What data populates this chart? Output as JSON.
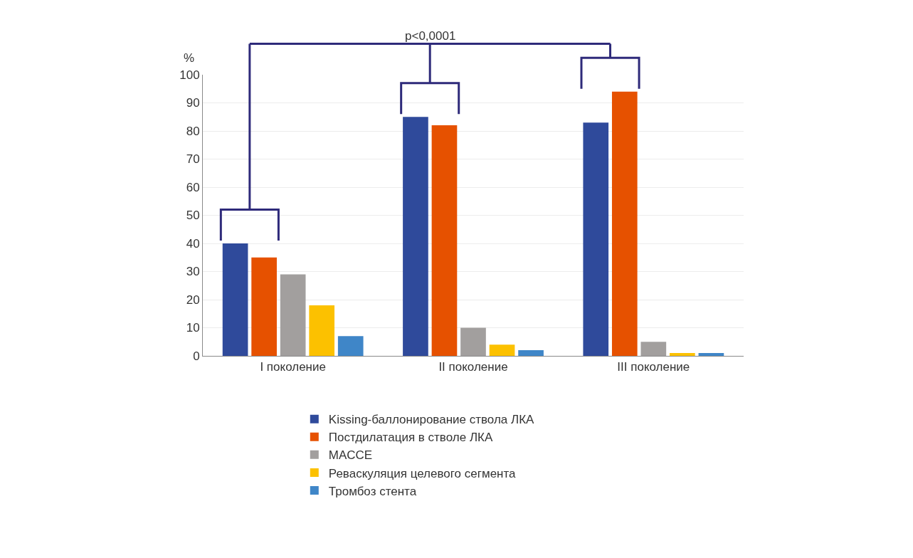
{
  "chart_data": {
    "type": "bar",
    "ylabel": "%",
    "annotations": [
      "p<0,0001"
    ],
    "categories": [
      "I поколение",
      "II поколение",
      "III поколение"
    ],
    "series": [
      {
        "name": "Kissing-баллонирование ствола ЛКА",
        "color": "#2f4a9b",
        "values": [
          40,
          85,
          83
        ]
      },
      {
        "name": "Постдилатация в стволе ЛКА",
        "color": "#e65100",
        "values": [
          35,
          82,
          94
        ]
      },
      {
        "name": "MACCE",
        "color": "#a29f9e",
        "values": [
          29,
          10,
          5
        ]
      },
      {
        "name": "Реваскуляция целевого сегмента",
        "color": "#fcc100",
        "values": [
          18,
          4,
          1
        ]
      },
      {
        "name": "Тромбоз стента",
        "color": "#3f86c8",
        "values": [
          7,
          2,
          1
        ]
      }
    ],
    "ylim": [
      0,
      100
    ],
    "yticks": [
      0,
      10,
      20,
      30,
      40,
      50,
      60,
      70,
      80,
      90,
      100
    ],
    "grid": "y",
    "legend": "bottom"
  }
}
